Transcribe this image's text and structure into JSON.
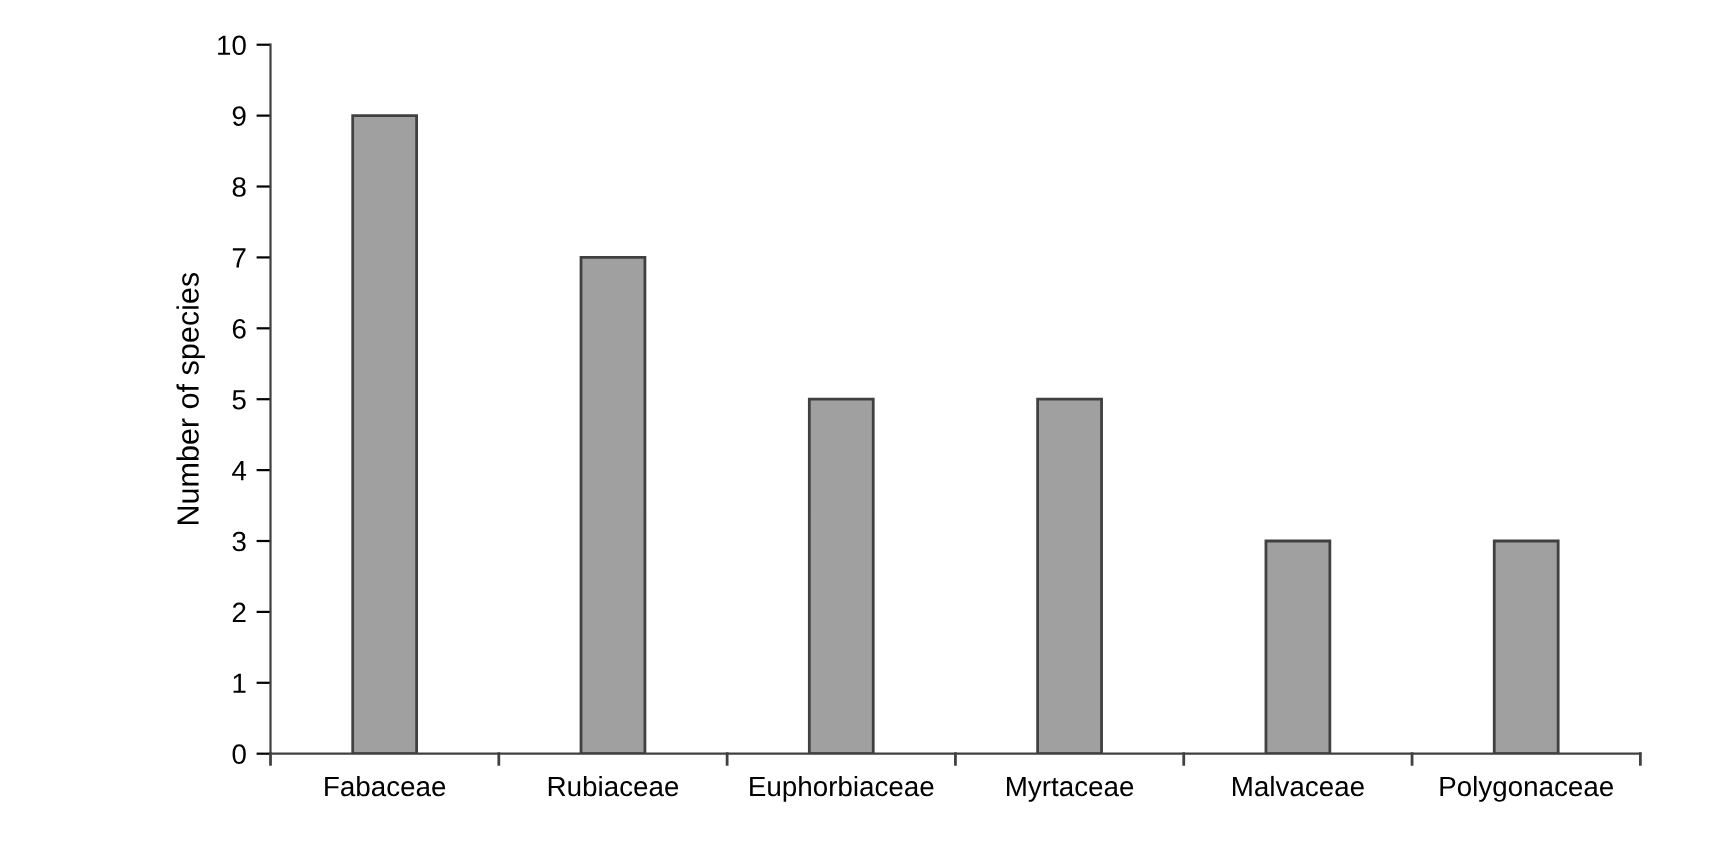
{
  "chart_data": {
    "type": "bar",
    "ylabel": "Number of species",
    "categories": [
      "Fabaceae",
      "Rubiaceae",
      "Euphorbiaceae",
      "Myrtaceae",
      "Malvaceae",
      "Polygonaceae"
    ],
    "values": [
      9,
      7,
      5,
      5,
      3,
      3
    ],
    "color": "#a0a0a0",
    "ylim": [
      0,
      10
    ],
    "yticks": [
      0,
      1,
      2,
      3,
      4,
      5,
      6,
      7,
      8,
      9,
      10
    ],
    "grid": false,
    "legend": false
  }
}
